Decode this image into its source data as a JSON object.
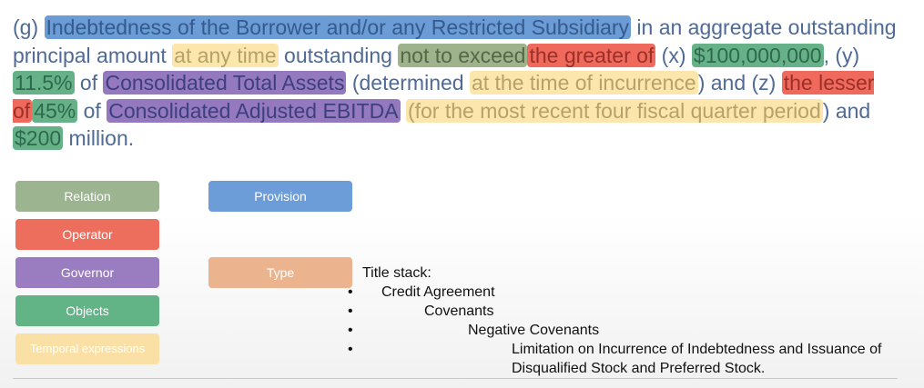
{
  "passage": {
    "seg01": "(g) ",
    "seg02": "Indebtedness of the Borrower and/or any Restricted Subsidiary",
    "seg03": " in an aggregate outstanding principal amount ",
    "seg04": "at any time",
    "seg05": " outstanding ",
    "seg06": "not to exceed",
    "seg07": "the greater of",
    "seg08": " (x) ",
    "seg09": "$100,000,000",
    "seg10": ", (y) ",
    "seg11": "11.5%",
    "seg12": " of ",
    "seg13": "Consolidated Total Assets",
    "seg14": "  (determined ",
    "seg15": "at the time of incurrence",
    "seg16": ")  and (z) ",
    "seg17": "the lesser of",
    "seg18": "45%",
    "seg19": " of ",
    "seg20": "Consolidated Adjusted EBITDA",
    "seg21": " ",
    "seg22": "(for the most recent four fiscal quarter period",
    "seg23": ") and ",
    "seg24": "$200",
    "seg25": " million."
  },
  "legend": {
    "relation": "Relation",
    "provision": "Provision",
    "operator": "Operator",
    "governor": "Governor",
    "type": "Type",
    "objects": "Objects",
    "temporal": "Temporal expressions"
  },
  "colors": {
    "relation": "#9cb48f",
    "provision": "#6d9dd8",
    "operator": "#ee6e5e",
    "governor": "#9a7cc0",
    "type": "#ebb48f",
    "objects": "#62b487",
    "temporal": "#fbe0a5"
  },
  "title_stack": {
    "heading": "Title stack:",
    "level1": "Credit Agreement",
    "level2": "Covenants",
    "level3": "Negative Covenants",
    "level4": "Limitation on Incurrence of Indebtedness and Issuance of Disqualified Stock and Preferred Stock."
  }
}
